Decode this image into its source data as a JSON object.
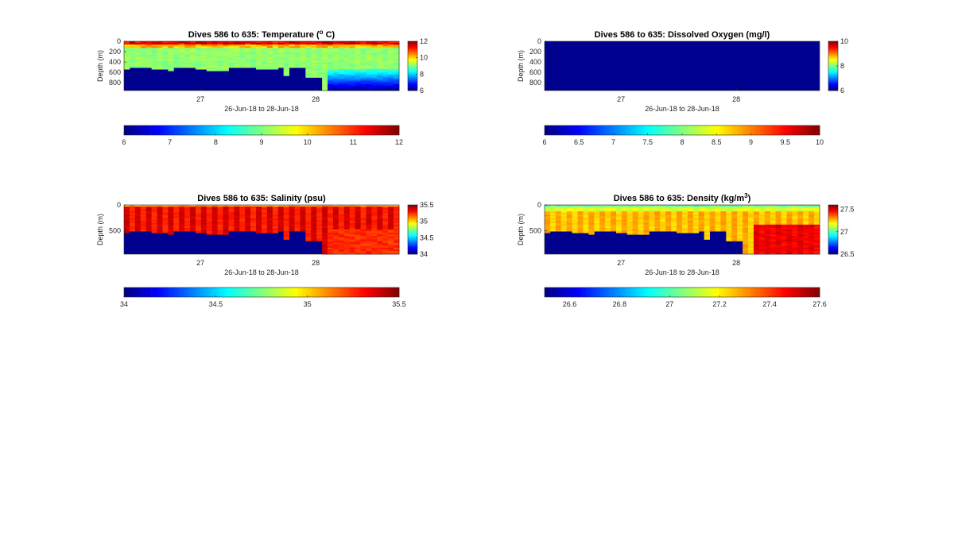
{
  "chart_data": [
    {
      "type": "heatmap",
      "title": "Dives 586 to 635: Temperature (",
      "title_sup": "o",
      "title_tail": " C)",
      "xlabel": "26-Jun-18 to 28-Jun-18",
      "ylabel": "Depth (m)",
      "x_ticks": [
        "27",
        "28"
      ],
      "y_ticks": [
        "0",
        "200",
        "400",
        "600",
        "800"
      ],
      "ylim": [
        0,
        950
      ],
      "colorbar_ticks": [
        "12",
        "10",
        "8",
        "6"
      ],
      "h_colorbar_ticks": [
        "6",
        "7",
        "8",
        "9",
        "10",
        "11",
        "12"
      ],
      "clim": [
        6,
        12
      ],
      "colormap": "jet",
      "field": "temperature"
    },
    {
      "type": "heatmap",
      "title": "Dives 586 to 635: Dissolved Oxygen (mg/l)",
      "xlabel": "26-Jun-18 to 28-Jun-18",
      "ylabel": "Depth (m)",
      "x_ticks": [
        "27",
        "28"
      ],
      "y_ticks": [
        "0",
        "200",
        "400",
        "600",
        "800"
      ],
      "ylim": [
        0,
        950
      ],
      "colorbar_ticks": [
        "10",
        "8",
        "6"
      ],
      "h_colorbar_ticks": [
        "6",
        "6.5",
        "7",
        "7.5",
        "8",
        "8.5",
        "9",
        "9.5",
        "10"
      ],
      "clim": [
        6,
        10
      ],
      "colormap": "jet",
      "field": "oxygen"
    },
    {
      "type": "heatmap",
      "title": "Dives 586 to 635: Salinity (psu)",
      "xlabel": "26-Jun-18 to 28-Jun-18",
      "ylabel": "Depth (m)",
      "x_ticks": [
        "27",
        "28"
      ],
      "y_ticks": [
        "0",
        "500"
      ],
      "ylim": [
        0,
        950
      ],
      "colorbar_ticks": [
        "35.5",
        "35",
        "34.5",
        "34"
      ],
      "h_colorbar_ticks": [
        "34",
        "34.5",
        "35",
        "35.5"
      ],
      "clim": [
        34,
        35.5
      ],
      "colormap": "jet",
      "field": "salinity"
    },
    {
      "type": "heatmap",
      "title": "Dives 586 to 635: Density (kg/m",
      "title_sup": "3",
      "title_tail": ")",
      "xlabel": "26-Jun-18 to 28-Jun-18",
      "ylabel": "Depth (m)",
      "x_ticks": [
        "27",
        "28"
      ],
      "y_ticks": [
        "0",
        "500"
      ],
      "ylim": [
        0,
        950
      ],
      "colorbar_ticks": [
        "27.5",
        "27",
        "26.5"
      ],
      "h_colorbar_ticks": [
        "26.6",
        "26.8",
        "27",
        "27.2",
        "27.4",
        "27.6"
      ],
      "clim": [
        26.5,
        27.6
      ],
      "colormap": "jet",
      "field": "density"
    }
  ]
}
